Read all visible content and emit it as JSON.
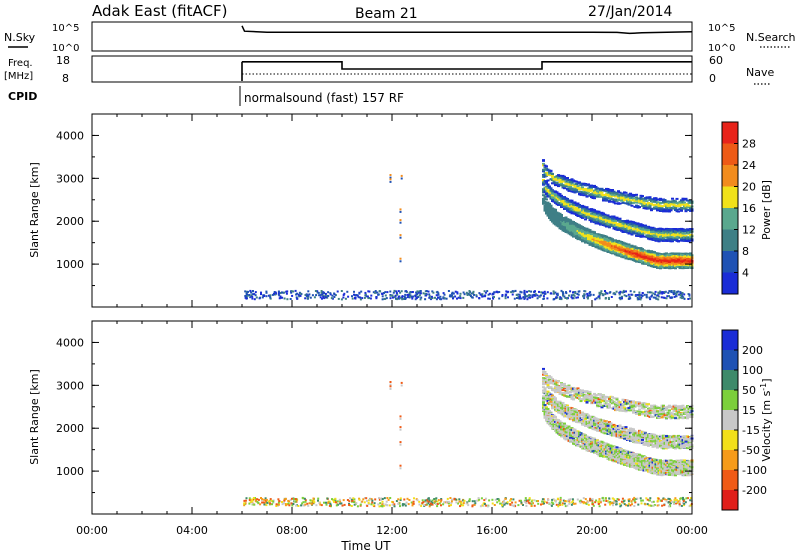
{
  "header": {
    "station": "Adak East (fitACF)",
    "beam": "Beam 21",
    "date": "27/Jan/2014"
  },
  "params": {
    "nsky_label": "N.Sky",
    "nsearch_label": "N.Search",
    "freq_label_line1": "Freq.",
    "freq_label_line2": "[MHz]",
    "nave_label": "Nave",
    "cpid_label": "CPID",
    "cpid_text": "normalsound (fast) 157 RF",
    "noise_ticks": [
      "10^5",
      "10^0"
    ],
    "freq_left_ticks": [
      "18",
      "8"
    ],
    "freq_right_ticks": [
      "60",
      "0"
    ]
  },
  "colors": {
    "power": [
      "#1a2cd6",
      "#1f52b4",
      "#3e7f86",
      "#5aa88e",
      "#f1e21a",
      "#f28c1d",
      "#ee5a16",
      "#e8231a"
    ],
    "velocity": [
      "#1a2cd6",
      "#1f52b4",
      "#3e8a6a",
      "#7ccf3b",
      "#c8c8c8",
      "#f3e01a",
      "#f59b1a",
      "#ef5a16",
      "#e01f1a"
    ]
  },
  "chart_data": [
    {
      "type": "line",
      "title": "",
      "xlabel": "",
      "ylabel": "N.Sky",
      "xlim": [
        0,
        24
      ],
      "ylim": [
        "10^0",
        "10^5"
      ],
      "series": [
        {
          "name": "N.Sky",
          "x": [
            6.0,
            6.1,
            7,
            8,
            10,
            12,
            14,
            16,
            18,
            20,
            21,
            21.5,
            22,
            23,
            24
          ],
          "values": [
            30000,
            3000,
            2000,
            2000,
            2000,
            2000,
            2000,
            2000,
            2000,
            2000,
            1800,
            1200,
            1500,
            2000,
            2500
          ]
        }
      ]
    },
    {
      "type": "line",
      "title": "",
      "xlabel": "",
      "ylabel": "Freq. [MHz]",
      "xlim": [
        0,
        24
      ],
      "ylim": [
        8,
        18
      ],
      "series": [
        {
          "name": "Freq.",
          "x": [
            6,
            10,
            10,
            18,
            18,
            24
          ],
          "values": [
            16,
            16,
            13,
            13,
            16,
            16
          ]
        },
        {
          "name": "Nave",
          "x": [
            6,
            24
          ],
          "values": [
            18,
            18
          ]
        }
      ]
    },
    {
      "type": "heatmap",
      "title": "",
      "xlabel": "",
      "ylabel": "Slant Range [km]",
      "xlim": [
        0,
        24
      ],
      "ylim": [
        0,
        4500
      ],
      "y_ticks": [
        "1000",
        "2000",
        "3000",
        "4000"
      ],
      "colorbar": {
        "label": "Power [dB]",
        "range": [
          0,
          32
        ],
        "ticks": [
          "4",
          "8",
          "12",
          "16",
          "20",
          "24",
          "28"
        ]
      },
      "regions": [
        {
          "name": "band-1",
          "x_range": [
            18,
            24
          ],
          "range_start_km": 2600,
          "range_end_km": 1100,
          "thickness_km": 350
        },
        {
          "name": "band-2",
          "x_range": [
            18,
            24
          ],
          "range_start_km": 3000,
          "range_end_km": 1700,
          "thickness_km": 300
        },
        {
          "name": "band-3",
          "x_range": [
            18,
            24
          ],
          "range_start_km": 3300,
          "range_end_km": 2400,
          "thickness_km": 300
        },
        {
          "name": "near-range-echoes",
          "x_range": [
            6,
            24
          ],
          "range_km": [
            200,
            400
          ]
        }
      ]
    },
    {
      "type": "heatmap",
      "title": "",
      "xlabel": "Time UT",
      "ylabel": "Slant Range [km]",
      "xlim": [
        0,
        24
      ],
      "ylim": [
        0,
        4500
      ],
      "x_ticks": [
        "00:00",
        "04:00",
        "08:00",
        "12:00",
        "16:00",
        "20:00",
        "00:00"
      ],
      "y_ticks": [
        "1000",
        "2000",
        "3000",
        "4000"
      ],
      "colorbar": {
        "label": "Velocity [m s^-1]",
        "ticks": [
          "200",
          "100",
          "50",
          "15",
          "-15",
          "-50",
          "-100",
          "-200"
        ]
      },
      "regions": [
        {
          "name": "band-1",
          "x_range": [
            18,
            24
          ],
          "range_start_km": 2600,
          "range_end_km": 1100,
          "thickness_km": 350
        },
        {
          "name": "band-2",
          "x_range": [
            18,
            24
          ],
          "range_start_km": 3000,
          "range_end_km": 1700,
          "thickness_km": 300
        },
        {
          "name": "band-3",
          "x_range": [
            18,
            24
          ],
          "range_start_km": 3300,
          "range_end_km": 2400,
          "thickness_km": 300
        },
        {
          "name": "near-range-echoes",
          "x_range": [
            6,
            24
          ],
          "range_km": [
            200,
            400
          ]
        }
      ]
    }
  ]
}
